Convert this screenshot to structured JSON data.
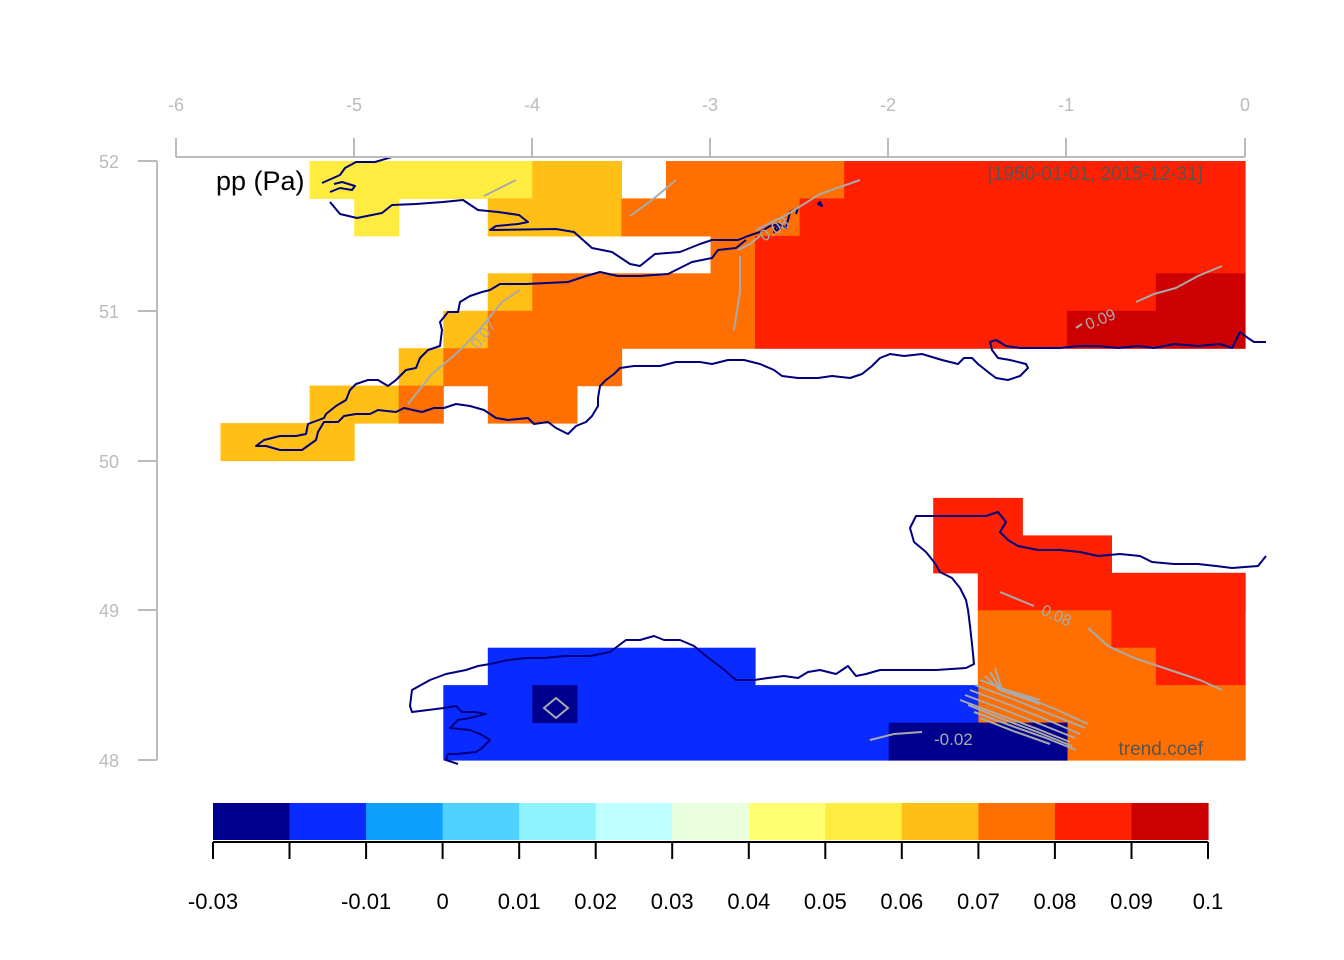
{
  "map": {
    "variable_label": "pp (Pa)",
    "period_label": "[1950-01-01, 2015-12-31]",
    "statistic_label": "trend.coef",
    "x_ticks": [
      "-6",
      "-5",
      "-4",
      "-3",
      "-2",
      "-1",
      "0"
    ],
    "y_ticks": [
      "52",
      "51",
      "50",
      "49",
      "48"
    ],
    "contour_labels": [
      "0.08",
      "0.07",
      "0.09",
      "0.08",
      "-0.02"
    ]
  },
  "chart_data": {
    "type": "heatmap",
    "title": "pp (Pa)",
    "subtitle": "[1950-01-01, 2015-12-31]",
    "annotation": "trend.coef",
    "x_axis": {
      "position": "top",
      "ticks": [
        -6,
        -5,
        -4,
        -3,
        -2,
        -1,
        0
      ],
      "range": [
        -6,
        0.1
      ]
    },
    "y_axis": {
      "ticks": [
        48,
        49,
        50,
        51,
        52
      ],
      "range": [
        48,
        52
      ]
    },
    "legend": {
      "position": "bottom",
      "breaks": [
        -0.03,
        -0.02,
        -0.01,
        0,
        0.01,
        0.02,
        0.03,
        0.04,
        0.05,
        0.06,
        0.07,
        0.08,
        0.09,
        0.1
      ],
      "tick_labels": [
        "-0.03",
        "",
        "-0.01",
        "0",
        "0.01",
        "0.02",
        "0.03",
        "0.04",
        "0.05",
        "0.06",
        "0.07",
        "0.08",
        "0.09",
        "0.1"
      ],
      "colors": [
        "#00008F",
        "#0A2BFF",
        "#0DA0FF",
        "#4FD2FF",
        "#8FF2FF",
        "#C0FFFF",
        "#EAFFDE",
        "#FFFF70",
        "#FFEC40",
        "#FFBF15",
        "#FF7000",
        "#FF2000",
        "#CC0000"
      ]
    },
    "cells_note": "grid cells: lon0, lon1, lat0, lat1, value (trend coefficient)",
    "cells": [
      [
        -5.25,
        -4.0,
        51.75,
        52.0,
        0.055
      ],
      [
        -5.0,
        -4.75,
        51.5,
        51.75,
        0.055
      ],
      [
        -4.0,
        -3.5,
        51.5,
        52.0,
        0.065
      ],
      [
        -4.25,
        -4.0,
        51.5,
        51.75,
        0.065
      ],
      [
        -3.25,
        -2.25,
        51.75,
        52.0,
        0.075
      ],
      [
        -3.5,
        -2.5,
        51.5,
        51.75,
        0.075
      ],
      [
        -2.25,
        0.0,
        51.75,
        52.0,
        0.085
      ],
      [
        -2.5,
        0.0,
        51.5,
        51.75,
        0.085
      ],
      [
        -3.0,
        -2.75,
        51.25,
        51.5,
        0.075
      ],
      [
        -2.75,
        0.0,
        51.25,
        51.5,
        0.085
      ],
      [
        -4.25,
        -4.0,
        51.0,
        51.25,
        0.065
      ],
      [
        -4.0,
        -2.75,
        51.0,
        51.25,
        0.075
      ],
      [
        -2.75,
        -0.5,
        51.0,
        51.25,
        0.085
      ],
      [
        -0.5,
        0.0,
        51.0,
        51.25,
        0.095
      ],
      [
        -4.5,
        -4.25,
        50.75,
        51.0,
        0.065
      ],
      [
        -4.25,
        -2.75,
        50.75,
        51.0,
        0.075
      ],
      [
        -2.75,
        -1.0,
        50.75,
        51.0,
        0.085
      ],
      [
        -1.0,
        0.0,
        50.75,
        51.0,
        0.095
      ],
      [
        -4.75,
        -4.5,
        50.5,
        50.75,
        0.065
      ],
      [
        -4.5,
        -3.5,
        50.5,
        50.75,
        0.075
      ],
      [
        -5.25,
        -4.75,
        50.25,
        50.5,
        0.065
      ],
      [
        -4.75,
        -4.5,
        50.25,
        50.5,
        0.075
      ],
      [
        -4.25,
        -3.75,
        50.25,
        50.5,
        0.075
      ],
      [
        -5.75,
        -5.0,
        50.0,
        50.25,
        0.065
      ],
      [
        -1.75,
        -1.25,
        49.5,
        49.75,
        0.085
      ],
      [
        -1.75,
        -0.75,
        49.25,
        49.5,
        0.085
      ],
      [
        -1.5,
        0.0,
        49.0,
        49.25,
        0.085
      ],
      [
        -1.5,
        -0.75,
        48.75,
        49.0,
        0.075
      ],
      [
        -0.75,
        0.0,
        48.75,
        49.0,
        0.085
      ],
      [
        -1.5,
        -0.5,
        48.5,
        48.75,
        0.075
      ],
      [
        -0.5,
        0.0,
        48.5,
        48.75,
        0.085
      ],
      [
        -1.5,
        0.0,
        48.0,
        48.5,
        0.075
      ],
      [
        -4.25,
        -2.75,
        48.5,
        48.75,
        -0.015
      ],
      [
        -4.5,
        -1.5,
        48.25,
        48.5,
        -0.015
      ],
      [
        -4.5,
        -2.0,
        48.0,
        48.25,
        -0.015
      ],
      [
        -4.0,
        -3.75,
        48.25,
        48.5,
        -0.025
      ],
      [
        -2.0,
        -1.0,
        48.0,
        48.25,
        -0.025
      ]
    ]
  }
}
